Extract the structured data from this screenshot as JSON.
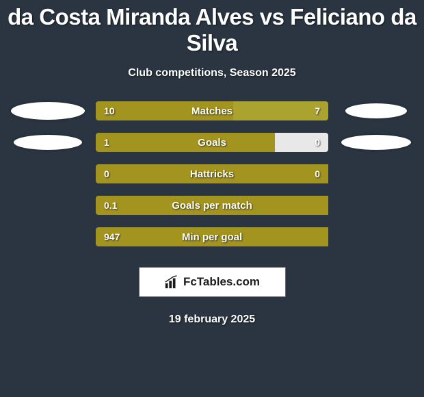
{
  "title": "da Costa Miranda Alves vs Feliciano da Silva",
  "subtitle": "Club competitions, Season 2025",
  "date": "19 february 2025",
  "logo_text": "FcTables.com",
  "colors": {
    "bg": "#2a3541",
    "left_bar": "#a3941f",
    "right_bar": "#a3941f",
    "right_bar_alt": "#e8e8e8",
    "text": "#ffffff",
    "dot": "#ffffff"
  },
  "rows": [
    {
      "label": "Matches",
      "left_val": "10",
      "right_val": "7",
      "left_pct": 59,
      "right_pct": 41,
      "left_color": "#a3941f",
      "right_color": "#aaa330",
      "left_dot_w": 108,
      "left_dot_h": 26,
      "right_dot_w": 90,
      "right_dot_h": 22
    },
    {
      "label": "Goals",
      "left_val": "1",
      "right_val": "0",
      "left_pct": 77,
      "right_pct": 23,
      "left_color": "#a3941f",
      "right_color": "#e8e8e8",
      "left_dot_w": 100,
      "left_dot_h": 22,
      "right_dot_w": 102,
      "right_dot_h": 22
    },
    {
      "label": "Hattricks",
      "left_val": "0",
      "right_val": "0",
      "left_pct": 100,
      "right_pct": 0,
      "left_color": "#a3941f",
      "right_color": "#a3941f",
      "left_dot_w": 0,
      "left_dot_h": 0,
      "right_dot_w": 0,
      "right_dot_h": 0
    },
    {
      "label": "Goals per match",
      "left_val": "0.1",
      "right_val": "",
      "left_pct": 100,
      "right_pct": 0,
      "left_color": "#a3941f",
      "right_color": "#a3941f",
      "left_dot_w": 0,
      "left_dot_h": 0,
      "right_dot_w": 0,
      "right_dot_h": 0
    },
    {
      "label": "Min per goal",
      "left_val": "947",
      "right_val": "",
      "left_pct": 100,
      "right_pct": 0,
      "left_color": "#a3941f",
      "right_color": "#a3941f",
      "left_dot_w": 0,
      "left_dot_h": 0,
      "right_dot_w": 0,
      "right_dot_h": 0
    }
  ]
}
